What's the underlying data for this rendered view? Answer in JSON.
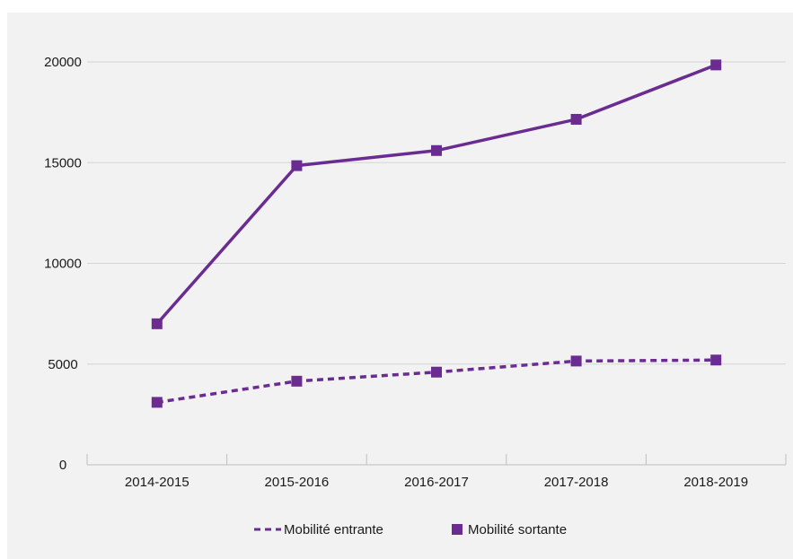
{
  "chart_data": {
    "type": "line",
    "title": "",
    "xlabel": "",
    "ylabel": "",
    "categories": [
      "2014-2015",
      "2015-2016",
      "2016-2017",
      "2017-2018",
      "2018-2019"
    ],
    "ylim": [
      0,
      20000
    ],
    "yticks": [
      "0",
      "5000",
      "10000",
      "15000",
      "20000"
    ],
    "grid": true,
    "legend_position": "bottom",
    "series": [
      {
        "name": "Mobilité entrante",
        "values": [
          3100,
          4150,
          4600,
          5150,
          5200
        ],
        "color": "#6a2c91",
        "style": "dashed",
        "marker": "square"
      },
      {
        "name": "Mobilité sortante",
        "values": [
          7000,
          14850,
          15600,
          17150,
          19850
        ],
        "color": "#6a2c91",
        "style": "solid",
        "marker": "square"
      }
    ]
  }
}
